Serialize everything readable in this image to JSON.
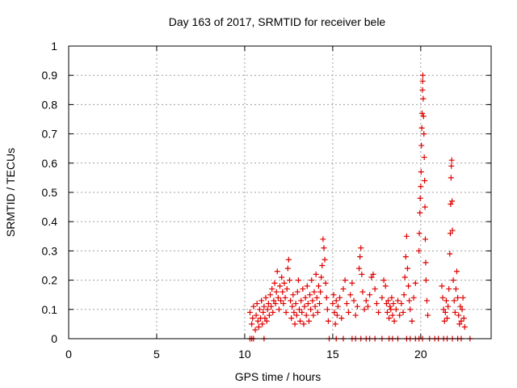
{
  "chart_data": {
    "type": "scatter",
    "title": "Day 163 of 2017, SRMTID for receiver bele",
    "xlabel": "GPS time / hours",
    "ylabel": "SRMTID / TECUs",
    "xlim": [
      0,
      24
    ],
    "ylim": [
      0,
      1
    ],
    "xticks": [
      0,
      5,
      10,
      15,
      20
    ],
    "xtick_labels": [
      "0",
      "5",
      "10",
      "15",
      "20"
    ],
    "yticks": [
      0,
      0.1,
      0.2,
      0.3,
      0.4,
      0.5,
      0.6,
      0.7,
      0.8,
      0.9,
      1
    ],
    "ytick_labels": [
      "0",
      "0.1",
      "0.2",
      "0.3",
      "0.4",
      "0.5",
      "0.6",
      "0.7",
      "0.8",
      "0.9",
      "1"
    ],
    "grid": true,
    "marker": "+",
    "color": "#e00000",
    "series": [
      {
        "name": "SRMTID",
        "points": [
          [
            10.3,
            0.0
          ],
          [
            10.4,
            0.0
          ],
          [
            10.5,
            0.0
          ],
          [
            11.1,
            0.0
          ],
          [
            14.8,
            0.0
          ],
          [
            15.2,
            0.0
          ],
          [
            15.6,
            0.0
          ],
          [
            16.1,
            0.0
          ],
          [
            16.3,
            0.0
          ],
          [
            16.6,
            0.0
          ],
          [
            16.9,
            0.0
          ],
          [
            17.1,
            0.0
          ],
          [
            17.4,
            0.0
          ],
          [
            17.8,
            0.0
          ],
          [
            18.2,
            0.0
          ],
          [
            18.4,
            0.0
          ],
          [
            18.7,
            0.0
          ],
          [
            19.2,
            0.0
          ],
          [
            19.4,
            0.0
          ],
          [
            19.7,
            0.0
          ],
          [
            19.9,
            0.0
          ],
          [
            20.1,
            0.0
          ],
          [
            20.5,
            0.0
          ],
          [
            20.8,
            0.0
          ],
          [
            21.0,
            0.0
          ],
          [
            21.3,
            0.0
          ],
          [
            21.5,
            0.0
          ],
          [
            21.8,
            0.0
          ],
          [
            22.1,
            0.0
          ],
          [
            22.3,
            0.0
          ],
          [
            22.8,
            0.0
          ],
          [
            10.3,
            0.09
          ],
          [
            10.4,
            0.05
          ],
          [
            10.45,
            0.07
          ],
          [
            10.5,
            0.11
          ],
          [
            10.6,
            0.03
          ],
          [
            10.65,
            0.08
          ],
          [
            10.7,
            0.12
          ],
          [
            10.75,
            0.06
          ],
          [
            10.8,
            0.04
          ],
          [
            10.85,
            0.1
          ],
          [
            10.9,
            0.07
          ],
          [
            10.95,
            0.13
          ],
          [
            11.0,
            0.05
          ],
          [
            11.05,
            0.09
          ],
          [
            11.1,
            0.11
          ],
          [
            11.15,
            0.07
          ],
          [
            11.2,
            0.14
          ],
          [
            11.25,
            0.06
          ],
          [
            11.3,
            0.1
          ],
          [
            11.35,
            0.12
          ],
          [
            11.4,
            0.08
          ],
          [
            11.45,
            0.15
          ],
          [
            11.5,
            0.11
          ],
          [
            11.55,
            0.17
          ],
          [
            11.6,
            0.09
          ],
          [
            11.65,
            0.13
          ],
          [
            11.7,
            0.19
          ],
          [
            11.75,
            0.12
          ],
          [
            11.8,
            0.16
          ],
          [
            11.85,
            0.23
          ],
          [
            11.9,
            0.14
          ],
          [
            11.95,
            0.1
          ],
          [
            12.0,
            0.18
          ],
          [
            12.05,
            0.13
          ],
          [
            12.1,
            0.21
          ],
          [
            12.15,
            0.16
          ],
          [
            12.2,
            0.12
          ],
          [
            12.25,
            0.19
          ],
          [
            12.3,
            0.14
          ],
          [
            12.35,
            0.09
          ],
          [
            12.4,
            0.17
          ],
          [
            12.45,
            0.24
          ],
          [
            12.5,
            0.27
          ],
          [
            12.55,
            0.2
          ],
          [
            12.6,
            0.13
          ],
          [
            12.65,
            0.07
          ],
          [
            12.7,
            0.11
          ],
          [
            12.75,
            0.15
          ],
          [
            12.8,
            0.09
          ],
          [
            12.85,
            0.05
          ],
          [
            12.9,
            0.12
          ],
          [
            12.95,
            0.08
          ],
          [
            13.0,
            0.16
          ],
          [
            13.05,
            0.2
          ],
          [
            13.1,
            0.1
          ],
          [
            13.15,
            0.06
          ],
          [
            13.2,
            0.13
          ],
          [
            13.25,
            0.09
          ],
          [
            13.3,
            0.17
          ],
          [
            13.35,
            0.05
          ],
          [
            13.4,
            0.11
          ],
          [
            13.45,
            0.14
          ],
          [
            13.5,
            0.08
          ],
          [
            13.55,
            0.18
          ],
          [
            13.6,
            0.12
          ],
          [
            13.65,
            0.06
          ],
          [
            13.7,
            0.15
          ],
          [
            13.75,
            0.1
          ],
          [
            13.8,
            0.2
          ],
          [
            13.85,
            0.13
          ],
          [
            13.9,
            0.08
          ],
          [
            13.95,
            0.16
          ],
          [
            14.0,
            0.11
          ],
          [
            14.05,
            0.22
          ],
          [
            14.1,
            0.14
          ],
          [
            14.15,
            0.09
          ],
          [
            14.2,
            0.18
          ],
          [
            14.25,
            0.12
          ],
          [
            14.3,
            0.16
          ],
          [
            14.35,
            0.21
          ],
          [
            14.4,
            0.25
          ],
          [
            14.45,
            0.34
          ],
          [
            14.5,
            0.31
          ],
          [
            14.55,
            0.27
          ],
          [
            14.6,
            0.19
          ],
          [
            14.65,
            0.14
          ],
          [
            14.7,
            0.1
          ],
          [
            14.75,
            0.06
          ],
          [
            15.0,
            0.12
          ],
          [
            15.05,
            0.15
          ],
          [
            15.1,
            0.09
          ],
          [
            15.15,
            0.05
          ],
          [
            15.2,
            0.13
          ],
          [
            15.25,
            0.08
          ],
          [
            15.3,
            0.11
          ],
          [
            15.4,
            0.14
          ],
          [
            15.5,
            0.07
          ],
          [
            15.6,
            0.17
          ],
          [
            15.7,
            0.2
          ],
          [
            15.8,
            0.12
          ],
          [
            15.9,
            0.09
          ],
          [
            16.0,
            0.15
          ],
          [
            16.1,
            0.19
          ],
          [
            16.2,
            0.13
          ],
          [
            16.3,
            0.08
          ],
          [
            16.4,
            0.11
          ],
          [
            16.5,
            0.24
          ],
          [
            16.55,
            0.28
          ],
          [
            16.6,
            0.31
          ],
          [
            16.65,
            0.22
          ],
          [
            16.7,
            0.16
          ],
          [
            16.8,
            0.1
          ],
          [
            16.9,
            0.13
          ],
          [
            17.0,
            0.11
          ],
          [
            17.1,
            0.15
          ],
          [
            17.2,
            0.21
          ],
          [
            17.3,
            0.22
          ],
          [
            17.4,
            0.17
          ],
          [
            17.5,
            0.12
          ],
          [
            17.6,
            0.09
          ],
          [
            17.8,
            0.14
          ],
          [
            17.9,
            0.2
          ],
          [
            18.0,
            0.18
          ],
          [
            18.05,
            0.12
          ],
          [
            18.1,
            0.09
          ],
          [
            18.15,
            0.13
          ],
          [
            18.2,
            0.07
          ],
          [
            18.25,
            0.11
          ],
          [
            18.3,
            0.1
          ],
          [
            18.35,
            0.14
          ],
          [
            18.4,
            0.08
          ],
          [
            18.45,
            0.12
          ],
          [
            18.5,
            0.06
          ],
          [
            18.6,
            0.1
          ],
          [
            18.7,
            0.13
          ],
          [
            18.8,
            0.08
          ],
          [
            18.9,
            0.12
          ],
          [
            19.0,
            0.09
          ],
          [
            19.05,
            0.15
          ],
          [
            19.1,
            0.21
          ],
          [
            19.15,
            0.28
          ],
          [
            19.2,
            0.35
          ],
          [
            19.25,
            0.24
          ],
          [
            19.3,
            0.18
          ],
          [
            19.35,
            0.13
          ],
          [
            19.4,
            0.1
          ],
          [
            19.5,
            0.06
          ],
          [
            19.6,
            0.14
          ],
          [
            19.7,
            0.19
          ],
          [
            19.9,
            0.3
          ],
          [
            19.92,
            0.36
          ],
          [
            19.95,
            0.43
          ],
          [
            19.97,
            0.48
          ],
          [
            20.0,
            0.52
          ],
          [
            20.02,
            0.57
          ],
          [
            20.04,
            0.66
          ],
          [
            20.06,
            0.72
          ],
          [
            20.08,
            0.77
          ],
          [
            20.1,
            0.85
          ],
          [
            20.11,
            0.88
          ],
          [
            20.12,
            0.9
          ],
          [
            20.14,
            0.82
          ],
          [
            20.16,
            0.76
          ],
          [
            20.18,
            0.7
          ],
          [
            20.2,
            0.62
          ],
          [
            20.22,
            0.54
          ],
          [
            20.24,
            0.45
          ],
          [
            20.26,
            0.34
          ],
          [
            20.28,
            0.26
          ],
          [
            20.3,
            0.2
          ],
          [
            20.35,
            0.13
          ],
          [
            20.4,
            0.08
          ],
          [
            21.2,
            0.18
          ],
          [
            21.25,
            0.14
          ],
          [
            21.3,
            0.1
          ],
          [
            21.35,
            0.06
          ],
          [
            21.4,
            0.09
          ],
          [
            21.45,
            0.13
          ],
          [
            21.5,
            0.07
          ],
          [
            21.55,
            0.11
          ],
          [
            21.6,
            0.17
          ],
          [
            21.65,
            0.29
          ],
          [
            21.68,
            0.36
          ],
          [
            21.7,
            0.46
          ],
          [
            21.72,
            0.55
          ],
          [
            21.74,
            0.59
          ],
          [
            21.76,
            0.61
          ],
          [
            21.78,
            0.47
          ],
          [
            21.8,
            0.37
          ],
          [
            21.85,
            0.2
          ],
          [
            21.9,
            0.13
          ],
          [
            21.95,
            0.09
          ],
          [
            22.0,
            0.17
          ],
          [
            22.05,
            0.23
          ],
          [
            22.1,
            0.14
          ],
          [
            22.15,
            0.08
          ],
          [
            22.2,
            0.05
          ],
          [
            22.25,
            0.11
          ],
          [
            22.3,
            0.06
          ],
          [
            22.35,
            0.1
          ],
          [
            22.4,
            0.14
          ],
          [
            22.45,
            0.07
          ],
          [
            22.5,
            0.04
          ]
        ]
      }
    ]
  }
}
